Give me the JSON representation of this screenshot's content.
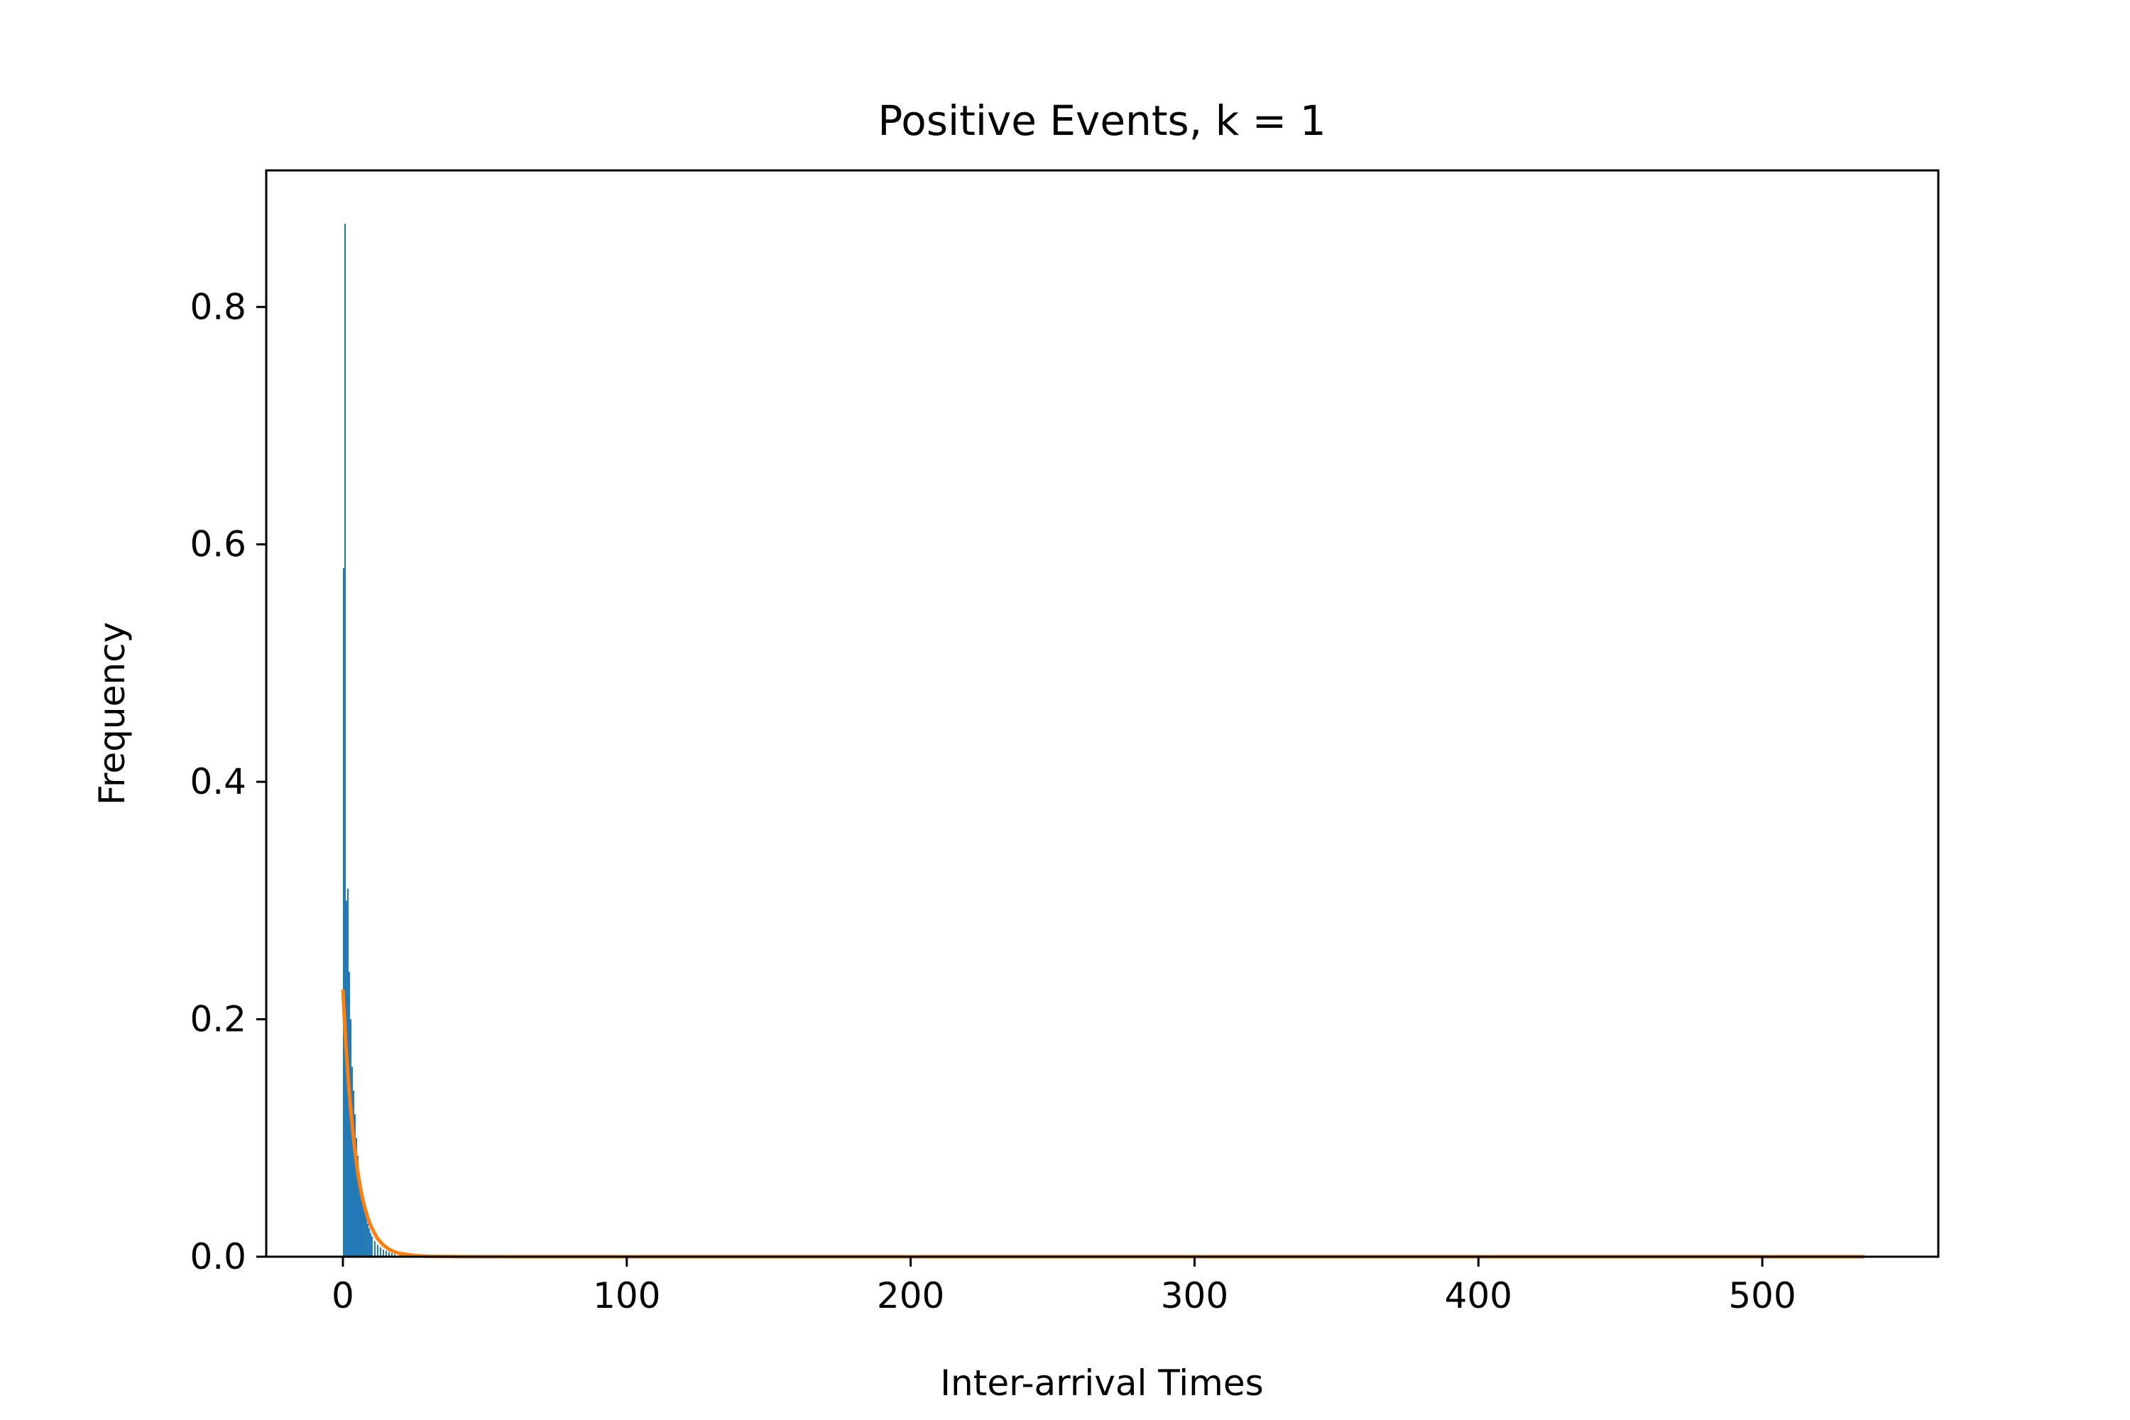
{
  "chart_data": {
    "type": "bar",
    "title": "Positive Events, k = 1",
    "xlabel": "Inter-arrival Times",
    "ylabel": "Frequency",
    "xlim": [
      -27,
      562
    ],
    "ylim": [
      0,
      0.915
    ],
    "xticks": [
      0,
      100,
      200,
      300,
      400,
      500
    ],
    "yticks": [
      0.0,
      0.2,
      0.4,
      0.6,
      0.8
    ],
    "ytick_labels": [
      "0.0",
      "0.2",
      "0.4",
      "0.6",
      "0.8"
    ],
    "grid": false,
    "legend": "none",
    "histogram": {
      "bin_width": 0.5,
      "color": "#1f77b4",
      "bins": [
        [
          0.0,
          0.58
        ],
        [
          0.5,
          0.87
        ],
        [
          1.0,
          0.3
        ],
        [
          1.5,
          0.31
        ],
        [
          2.0,
          0.24
        ],
        [
          2.5,
          0.2
        ],
        [
          3.0,
          0.16
        ],
        [
          3.5,
          0.14
        ],
        [
          4.0,
          0.12
        ],
        [
          4.5,
          0.1
        ],
        [
          5.0,
          0.085
        ],
        [
          5.5,
          0.07
        ],
        [
          6.0,
          0.06
        ],
        [
          6.5,
          0.052
        ],
        [
          7.0,
          0.045
        ],
        [
          7.5,
          0.038
        ],
        [
          8.0,
          0.033
        ],
        [
          8.5,
          0.028
        ],
        [
          9.0,
          0.024
        ],
        [
          9.5,
          0.02
        ],
        [
          10.0,
          0.017
        ],
        [
          11.0,
          0.013
        ],
        [
          12.0,
          0.01
        ],
        [
          13.0,
          0.008
        ],
        [
          14.0,
          0.006
        ],
        [
          15.0,
          0.005
        ],
        [
          16.0,
          0.004
        ],
        [
          17.0,
          0.003
        ],
        [
          18.0,
          0.002
        ],
        [
          20.0,
          0.002
        ]
      ]
    },
    "fit_curve": {
      "color": "#ff7f0e",
      "x": [
        0,
        1,
        2,
        3,
        4,
        5,
        6,
        7,
        8,
        9,
        10,
        12,
        14,
        16,
        18,
        20,
        25,
        30,
        40,
        60,
        100,
        200,
        300,
        400,
        500,
        536
      ],
      "y": [
        0.225,
        0.18,
        0.145,
        0.117,
        0.094,
        0.075,
        0.06,
        0.048,
        0.039,
        0.031,
        0.025,
        0.016,
        0.0103,
        0.0066,
        0.0042,
        0.0027,
        0.001,
        0.0003,
        0.0001,
        0,
        0,
        0,
        0,
        0,
        0,
        0
      ]
    }
  }
}
